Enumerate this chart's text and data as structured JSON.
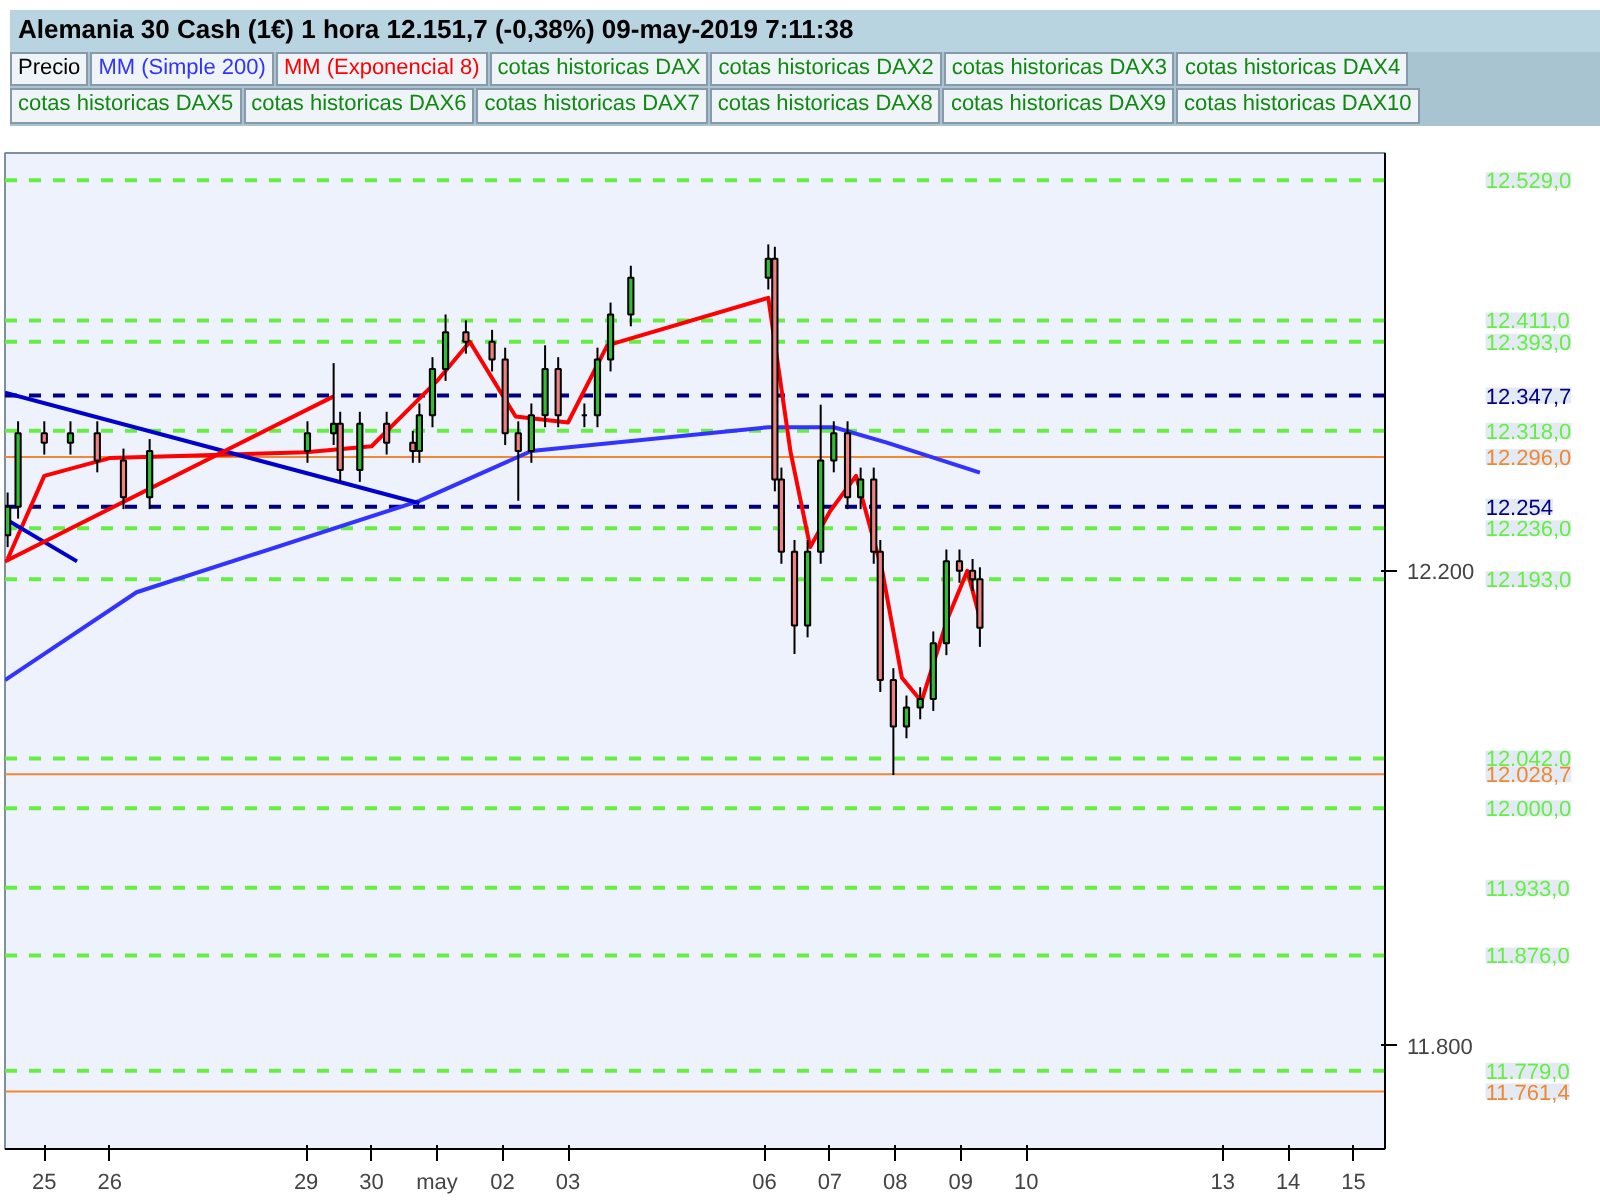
{
  "chart_data": {
    "type": "candlestick",
    "title": "Alemania 30 Cash (1€)   1 hora   12.151,7 (-0,38%)   09-may-2019 7:11:38",
    "x": [
      "2019-04-24T10:34",
      "2019-04-24T14:24",
      "2019-04-25T00:00",
      "2019-04-25T09:36",
      "2019-04-25T19:26",
      "2019-04-26T05:02",
      "2019-04-26T14:38",
      "2019-04-29T00:29",
      "2019-04-29T10:05",
      "2019-04-29T12:29",
      "2019-04-29T19:41",
      "2019-04-30T05:31",
      "2019-04-30T15:07",
      "2019-04-30T17:31",
      "2019-04-30T22:19",
      "2019-05-01T03:07",
      "2019-05-01T10:34",
      "2019-05-01T20:10",
      "2019-05-02T00:58",
      "2019-05-02T05:46",
      "2019-05-02T10:34",
      "2019-05-02T15:36",
      "2019-05-02T20:24",
      "2019-05-03T06:00",
      "2019-05-03T10:48",
      "2019-05-03T15:36",
      "2019-05-03T23:02",
      "2019-05-06T01:26",
      "2019-05-06T03:50",
      "2019-05-06T06:14",
      "2019-05-06T11:02",
      "2019-05-06T15:50",
      "2019-05-06T20:38",
      "2019-05-07T01:26",
      "2019-05-07T06:29",
      "2019-05-07T11:17",
      "2019-05-07T16:05",
      "2019-05-07T18:29",
      "2019-05-07T23:17",
      "2019-05-08T04:05",
      "2019-05-08T09:07",
      "2019-05-08T13:55",
      "2019-05-08T18:43",
      "2019-05-08T23:31",
      "2019-05-09T04:19",
      "2019-05-09T07:00"
    ],
    "ohlc": [
      [
        12230,
        12266,
        12220,
        12254
      ],
      [
        12254,
        12326,
        12244,
        12316
      ],
      [
        12316,
        12326,
        12298,
        12308
      ],
      [
        12308,
        12326,
        12298,
        12316
      ],
      [
        12316,
        12326,
        12283,
        12293
      ],
      [
        12293,
        12303,
        12252,
        12262
      ],
      [
        12262,
        12311,
        12252,
        12301
      ],
      [
        12301,
        12326,
        12291,
        12316
      ],
      [
        12316,
        12375,
        12306,
        12324
      ],
      [
        12324,
        12334,
        12275,
        12285
      ],
      [
        12285,
        12334,
        12275,
        12324
      ],
      [
        12324,
        12334,
        12298,
        12308
      ],
      [
        12308,
        12318,
        12291,
        12301
      ],
      [
        12301,
        12341,
        12291,
        12331
      ],
      [
        12331,
        12380,
        12321,
        12370
      ],
      [
        12370,
        12416,
        12360,
        12401
      ],
      [
        12401,
        12411,
        12383,
        12393
      ],
      [
        12393,
        12403,
        12368,
        12378
      ],
      [
        12378,
        12388,
        12306,
        12316
      ],
      [
        12316,
        12326,
        12259,
        12301
      ],
      [
        12301,
        12341,
        12291,
        12331
      ],
      [
        12331,
        12390,
        12321,
        12370
      ],
      [
        12370,
        12380,
        12321,
        12331
      ],
      [
        12331,
        12341,
        12321,
        12331
      ],
      [
        12331,
        12388,
        12321,
        12378
      ],
      [
        12378,
        12426,
        12368,
        12416
      ],
      [
        12416,
        12457,
        12406,
        12447
      ],
      [
        12447,
        12475,
        12437,
        12463
      ],
      [
        12463,
        12473,
        12267,
        12277
      ],
      [
        12277,
        12287,
        12206,
        12216
      ],
      [
        12216,
        12226,
        12130,
        12154
      ],
      [
        12154,
        12226,
        12144,
        12216
      ],
      [
        12216,
        12340,
        12206,
        12293
      ],
      [
        12293,
        12326,
        12283,
        12316
      ],
      [
        12316,
        12326,
        12252,
        12262
      ],
      [
        12262,
        12287,
        12252,
        12277
      ],
      [
        12277,
        12287,
        12206,
        12216
      ],
      [
        12216,
        12226,
        12098,
        12108
      ],
      [
        12108,
        12118,
        12028,
        12069
      ],
      [
        12069,
        12095,
        12059,
        12085
      ],
      [
        12085,
        12102,
        12075,
        12092
      ],
      [
        12092,
        12149,
        12082,
        12139
      ],
      [
        12139,
        12218,
        12129,
        12208
      ],
      [
        12208,
        12218,
        12190,
        12200
      ],
      [
        12200,
        12210,
        12183,
        12193
      ],
      [
        12193,
        12203,
        12136,
        12152
      ]
    ],
    "series": [
      {
        "name": "MM (Simple 200)",
        "type": "line",
        "color": "#3333ff",
        "x": [
          "2019-04-24T09:36",
          "2019-04-26T09:50",
          "2019-04-30T17:31",
          "2019-05-02T10:34",
          "2019-05-06T01:26",
          "2019-05-07T01:26",
          "2019-05-07T20:53",
          "2019-05-09T07:00"
        ],
        "values": [
          12108,
          12182,
          12259,
          12301,
          12321,
          12321,
          12308,
          12282.7
        ]
      },
      {
        "name": "MM (Exponencial 8)",
        "type": "line",
        "color": "#ff0000",
        "x": [
          "2019-04-24T10:34",
          "2019-04-25T00:00",
          "2019-04-26T00:00",
          "2019-04-29T00:00",
          "2019-04-30T00:00",
          "2019-05-01T00:00",
          "2019-05-01T12:00",
          "2019-05-02T04:48",
          "2019-05-03T00:00",
          "2019-05-03T14:24",
          "2019-05-06T01:26",
          "2019-05-06T09:36",
          "2019-05-06T16:48",
          "2019-05-07T00:00",
          "2019-05-07T09:36",
          "2019-05-07T19:12",
          "2019-05-08T02:24",
          "2019-05-08T09:36",
          "2019-05-08T19:12",
          "2019-05-09T02:24",
          "2019-05-09T07:00"
        ],
        "values": [
          12210,
          12280,
          12295,
          12300,
          12305,
          12360,
          12393,
          12330,
          12325,
          12390,
          12430,
          12300,
          12220,
          12250,
          12280,
          12200,
          12110,
          12090,
          12160,
          12200,
          12160.3
        ]
      },
      {
        "type": "line",
        "color": "#0000cc",
        "x": [
          "2019-04-24T09:36",
          "2019-04-30T17:31"
        ],
        "values": [
          12350,
          12257
        ]
      },
      {
        "type": "line",
        "color": "#0000cc",
        "x": [
          "2019-04-24T09:36",
          "2019-04-25T12:00"
        ],
        "values": [
          12244,
          12208
        ]
      },
      {
        "type": "line",
        "color": "#ff0000",
        "x": [
          "2019-04-24T09:36",
          "2019-04-29T10:05"
        ],
        "values": [
          12208,
          12347
        ]
      }
    ],
    "annotations": [
      "Precio",
      "cotas historicas DAX",
      "cotas historicas DAX2",
      "cotas historicas DAX3",
      "cotas historicas DAX4",
      "cotas historicas DAX5",
      "cotas historicas DAX6",
      "cotas historicas DAX7",
      "cotas historicas DAX8",
      "cotas historicas DAX9",
      "cotas historicas DAX10"
    ],
    "ref_lines": [
      {
        "axis": "y",
        "value": 12529,
        "label": "12.529,0",
        "color": "#66ee44",
        "line_style": "dashed"
      },
      {
        "axis": "y",
        "value": 12411,
        "label": "12.411,0",
        "color": "#66ee44",
        "line_style": "dashed"
      },
      {
        "axis": "y",
        "value": 12393,
        "label": "12.393,0",
        "color": "#66ee44",
        "line_style": "dashed"
      },
      {
        "axis": "y",
        "value": 12347.7,
        "label": "12.347,7",
        "color": "#000080",
        "line_style": "dashed"
      },
      {
        "axis": "y",
        "value": 12318,
        "label": "12.318,0",
        "color": "#66ee44",
        "line_style": "dashed"
      },
      {
        "axis": "y",
        "value": 12296,
        "label": "12.296,0",
        "color": "#ee8833",
        "line_style": "solid"
      },
      {
        "axis": "y",
        "value": 12254,
        "label": "12.254",
        "color": "#000080",
        "line_style": "dashed"
      },
      {
        "axis": "y",
        "value": 12236,
        "label": "12.236,0",
        "color": "#66ee44",
        "line_style": "dashed"
      },
      {
        "axis": "y",
        "value": 12193,
        "label": "12.193,0",
        "color": "#66ee44",
        "line_style": "dashed"
      },
      {
        "axis": "y",
        "value": 12042,
        "label": "12.042,0",
        "color": "#66ee44",
        "line_style": "dashed"
      },
      {
        "axis": "y",
        "value": 12028.7,
        "label": "12.028,7",
        "color": "#ee8833",
        "line_style": "solid"
      },
      {
        "axis": "y",
        "value": 12000,
        "label": "12.000,0",
        "color": "#66ee44",
        "line_style": "dashed"
      },
      {
        "axis": "y",
        "value": 11933,
        "label": "11.933,0",
        "color": "#66ee44",
        "line_style": "dashed"
      },
      {
        "axis": "y",
        "value": 11876,
        "label": "11.876,0",
        "color": "#66ee44",
        "line_style": "dashed"
      },
      {
        "axis": "y",
        "value": 11779,
        "label": "11.779,0",
        "color": "#66ee44",
        "line_style": "dashed"
      },
      {
        "axis": "y",
        "value": 11761.4,
        "label": "11.761,4",
        "color": "#ee8833",
        "line_style": "solid"
      }
    ],
    "xlim": [
      "2019-04-24T09:36",
      "2019-05-15T11:31"
    ],
    "xticks": [
      {
        "value": "2019-04-25",
        "label": "25"
      },
      {
        "value": "2019-04-26",
        "label": "26"
      },
      {
        "value": "2019-04-29",
        "label": "29"
      },
      {
        "value": "2019-04-30",
        "label": "30"
      },
      {
        "value": "2019-05-01",
        "label": "may"
      },
      {
        "value": "2019-05-02",
        "label": "02"
      },
      {
        "value": "2019-05-03",
        "label": "03"
      },
      {
        "value": "2019-05-06",
        "label": "06"
      },
      {
        "value": "2019-05-07",
        "label": "07"
      },
      {
        "value": "2019-05-08",
        "label": "08"
      },
      {
        "value": "2019-05-09",
        "label": "09"
      },
      {
        "value": "2019-05-10",
        "label": "10"
      },
      {
        "value": "2019-05-13",
        "label": "13"
      },
      {
        "value": "2019-05-14",
        "label": "14"
      },
      {
        "value": "2019-05-15",
        "label": "15"
      }
    ],
    "ylim": [
      11713,
      12552
    ],
    "yticks": [
      {
        "value": 11800,
        "label": "11.800"
      },
      {
        "value": 12200,
        "label": "12.200"
      }
    ],
    "grid": false
  }
}
